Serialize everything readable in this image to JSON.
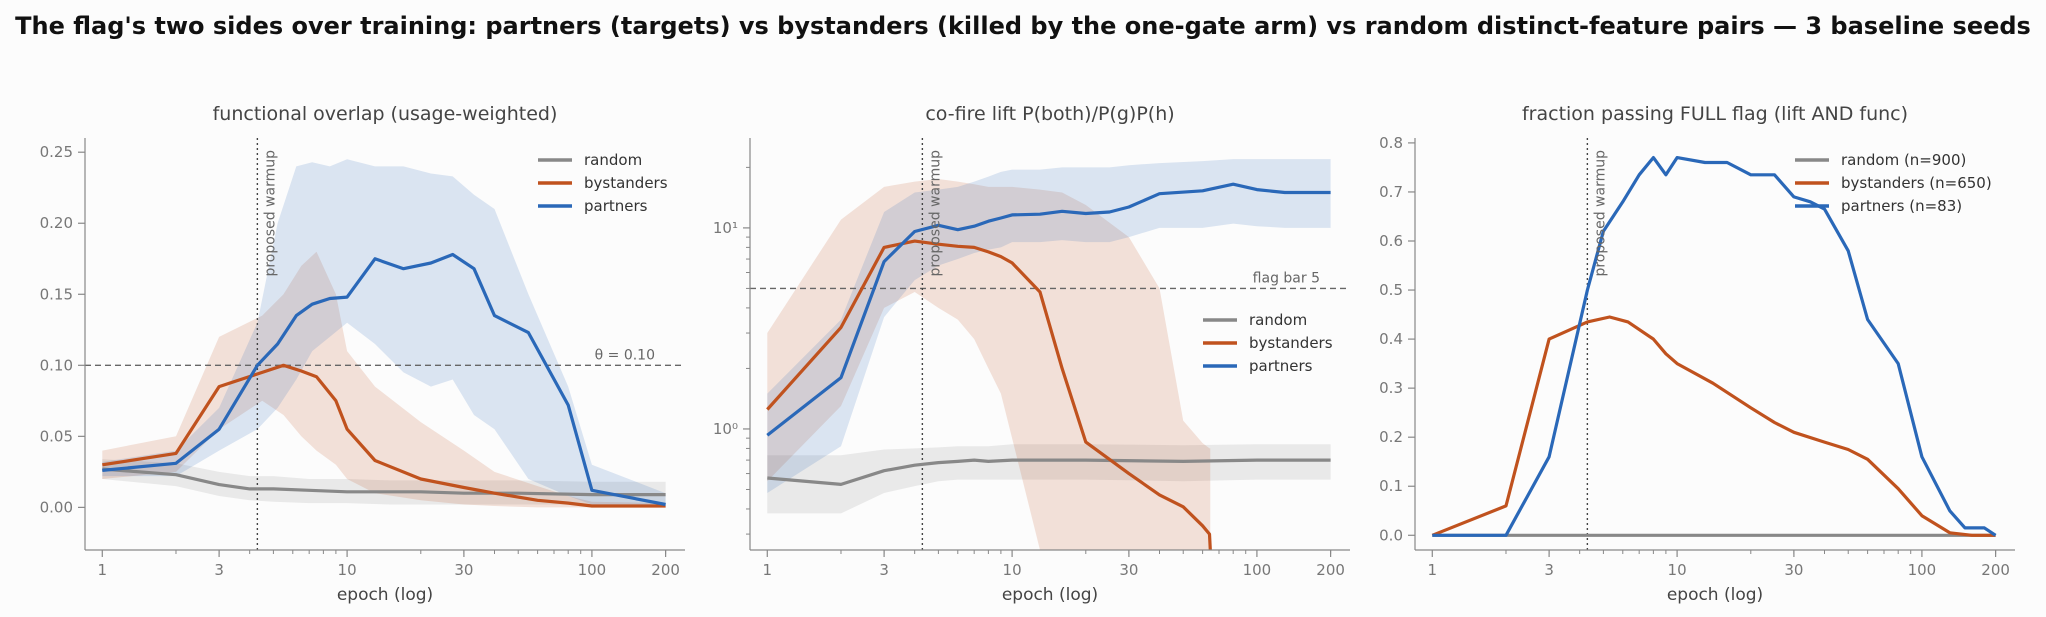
{
  "suptitle": "The flag's two sides over training: partners (targets) vs bystanders (killed by the one-gate arm) vs random distinct-feature pairs — 3 baseline seeds",
  "colors": {
    "random": "#888888",
    "bystanders": "#c0521e",
    "partners": "#2a68b8"
  },
  "chart_data": [
    {
      "type": "line",
      "title": "functional overlap (usage-weighted)",
      "xlabel": "epoch (log)",
      "xscale": "log",
      "xlim": [
        0.85,
        240
      ],
      "xticks": [
        1,
        3,
        10,
        30,
        100,
        200
      ],
      "xtick_labels": [
        "1",
        "3",
        "10",
        "30",
        "100",
        "200"
      ],
      "yscale": "linear",
      "ylim": [
        -0.03,
        0.26
      ],
      "yticks": [
        0.0,
        0.05,
        0.1,
        0.15,
        0.2,
        0.25
      ],
      "ytick_labels": [
        "0.00",
        "0.05",
        "0.10",
        "0.15",
        "0.20",
        "0.25"
      ],
      "vline": {
        "x": 4.3,
        "label": "proposed warmup"
      },
      "hline": {
        "y": 0.1,
        "label": "θ = 0.10"
      },
      "legend_position": "upper-right",
      "series": [
        {
          "name": "random",
          "color_key": "random",
          "x": [
            1,
            2,
            3,
            4,
            5,
            7,
            10,
            15,
            20,
            30,
            50,
            100,
            200
          ],
          "y": [
            0.027,
            0.023,
            0.016,
            0.013,
            0.013,
            0.012,
            0.011,
            0.011,
            0.011,
            0.01,
            0.01,
            0.009,
            0.009
          ],
          "lo": [
            0.02,
            0.015,
            0.008,
            0.005,
            0.004,
            0.003,
            0.003,
            0.002,
            0.002,
            0.002,
            0.002,
            0.002,
            0.002
          ],
          "hi": [
            0.034,
            0.031,
            0.025,
            0.022,
            0.022,
            0.02,
            0.02,
            0.019,
            0.019,
            0.019,
            0.019,
            0.018,
            0.018
          ]
        },
        {
          "name": "bystanders",
          "color_key": "bystanders",
          "x": [
            1,
            2,
            3,
            4.5,
            5.5,
            6.5,
            7.5,
            9,
            10,
            13,
            20,
            30,
            40,
            60,
            80,
            100,
            200
          ],
          "y": [
            0.03,
            0.038,
            0.085,
            0.095,
            0.1,
            0.096,
            0.092,
            0.075,
            0.055,
            0.033,
            0.02,
            0.014,
            0.01,
            0.005,
            0.003,
            0.001,
            0.001
          ],
          "lo": [
            0.02,
            0.025,
            0.055,
            0.075,
            0.065,
            0.05,
            0.04,
            0.03,
            0.02,
            0.01,
            0.005,
            0.002,
            0.001,
            0.0,
            0.0,
            0.0,
            0.0
          ],
          "hi": [
            0.04,
            0.05,
            0.12,
            0.135,
            0.15,
            0.17,
            0.18,
            0.15,
            0.11,
            0.085,
            0.06,
            0.04,
            0.025,
            0.015,
            0.008,
            0.004,
            0.003
          ]
        },
        {
          "name": "partners",
          "color_key": "partners",
          "x": [
            1,
            2,
            3,
            4.3,
            5.2,
            6.2,
            7.2,
            8.5,
            10,
            13,
            17,
            22,
            27,
            33,
            40,
            55,
            80,
            100,
            200
          ],
          "y": [
            0.026,
            0.031,
            0.055,
            0.1,
            0.115,
            0.135,
            0.143,
            0.147,
            0.148,
            0.175,
            0.168,
            0.172,
            0.178,
            0.168,
            0.135,
            0.123,
            0.072,
            0.012,
            0.002
          ],
          "lo": [
            0.022,
            0.022,
            0.04,
            0.055,
            0.07,
            0.09,
            0.11,
            0.12,
            0.13,
            0.115,
            0.095,
            0.085,
            0.09,
            0.065,
            0.055,
            0.02,
            0.008,
            0.002,
            0.0
          ],
          "hi": [
            0.032,
            0.04,
            0.07,
            0.13,
            0.2,
            0.24,
            0.243,
            0.24,
            0.245,
            0.24,
            0.24,
            0.235,
            0.233,
            0.22,
            0.21,
            0.15,
            0.085,
            0.03,
            0.01
          ]
        }
      ]
    },
    {
      "type": "line",
      "title": "co-fire lift P(both)/P(g)P(h)",
      "xlabel": "epoch (log)",
      "xscale": "log",
      "xlim": [
        0.85,
        240
      ],
      "xticks": [
        1,
        3,
        10,
        30,
        100,
        200
      ],
      "xtick_labels": [
        "1",
        "3",
        "10",
        "30",
        "100",
        "200"
      ],
      "yscale": "log",
      "ylim": [
        0.25,
        28
      ],
      "yticks": [
        1,
        10
      ],
      "ytick_labels": [
        "10⁰",
        "10¹"
      ],
      "vline": {
        "x": 4.3,
        "label": "proposed warmup"
      },
      "hline": {
        "y": 5,
        "label": "flag bar 5"
      },
      "legend_position": "center-right",
      "series": [
        {
          "name": "random",
          "color_key": "random",
          "x": [
            1,
            2,
            3,
            4,
            5,
            6,
            7,
            8,
            10,
            20,
            50,
            100,
            200
          ],
          "y": [
            0.57,
            0.53,
            0.62,
            0.66,
            0.68,
            0.69,
            0.7,
            0.69,
            0.7,
            0.7,
            0.69,
            0.7,
            0.7
          ],
          "lo": [
            0.38,
            0.38,
            0.48,
            0.52,
            0.55,
            0.56,
            0.56,
            0.56,
            0.56,
            0.56,
            0.55,
            0.56,
            0.56
          ],
          "hi": [
            0.74,
            0.74,
            0.79,
            0.8,
            0.81,
            0.82,
            0.82,
            0.82,
            0.84,
            0.84,
            0.83,
            0.84,
            0.84
          ]
        },
        {
          "name": "bystanders",
          "color_key": "bystanders",
          "x": [
            1,
            2,
            3,
            4,
            5,
            6,
            7,
            8,
            9,
            10,
            13,
            16,
            20,
            30,
            40,
            50,
            60,
            64,
            64.5
          ],
          "y": [
            1.25,
            3.2,
            8.0,
            8.6,
            8.3,
            8.1,
            8.0,
            7.6,
            7.2,
            6.7,
            4.8,
            2.0,
            0.86,
            0.6,
            0.47,
            0.41,
            0.33,
            0.3,
            0.25
          ],
          "lo": [
            0.55,
            1.3,
            4.0,
            4.8,
            4.0,
            3.5,
            2.8,
            2.0,
            1.5,
            0.9,
            0.25,
            0.25,
            0.25,
            0.25,
            0.25,
            0.25,
            0.25,
            0.25,
            0.25
          ],
          "hi": [
            3.0,
            11.0,
            16.0,
            17.0,
            17.5,
            17.0,
            16.5,
            16.0,
            16.0,
            16.0,
            15.5,
            15.0,
            13.0,
            9.0,
            5.0,
            1.1,
            0.85,
            0.8,
            0.8
          ]
        },
        {
          "name": "partners",
          "color_key": "partners",
          "x": [
            1,
            2,
            3,
            4,
            5,
            6,
            7,
            8,
            9,
            10,
            13,
            16,
            20,
            25,
            30,
            40,
            60,
            80,
            100,
            130,
            160,
            200
          ],
          "y": [
            0.93,
            1.8,
            6.8,
            9.6,
            10.3,
            9.8,
            10.2,
            10.8,
            11.2,
            11.6,
            11.7,
            12.1,
            11.8,
            12.0,
            12.7,
            14.8,
            15.3,
            16.5,
            15.5,
            15.0,
            15.0,
            15.0
          ],
          "lo": [
            0.48,
            0.82,
            3.6,
            5.5,
            6.5,
            7.0,
            7.5,
            7.8,
            8.0,
            8.5,
            8.5,
            8.7,
            8.5,
            8.5,
            9.0,
            10.0,
            10.0,
            10.5,
            10.2,
            10.0,
            10.0,
            10.0
          ],
          "hi": [
            1.5,
            3.5,
            12.0,
            15.0,
            15.5,
            16.0,
            17.0,
            18.0,
            19.0,
            19.5,
            19.5,
            20.0,
            20.0,
            20.0,
            20.5,
            21.0,
            21.5,
            22.0,
            22.0,
            22.0,
            22.0,
            22.0
          ]
        }
      ]
    },
    {
      "type": "line",
      "title": "fraction passing FULL flag (lift AND func)",
      "xlabel": "epoch (log)",
      "xscale": "log",
      "xlim": [
        0.85,
        240
      ],
      "xticks": [
        1,
        3,
        10,
        30,
        100,
        200
      ],
      "xtick_labels": [
        "1",
        "3",
        "10",
        "30",
        "100",
        "200"
      ],
      "yscale": "linear",
      "ylim": [
        -0.03,
        0.81
      ],
      "yticks": [
        0.0,
        0.1,
        0.2,
        0.3,
        0.4,
        0.5,
        0.6,
        0.7,
        0.8
      ],
      "ytick_labels": [
        "0.0",
        "0.1",
        "0.2",
        "0.3",
        "0.4",
        "0.5",
        "0.6",
        "0.7",
        "0.8"
      ],
      "vline": {
        "x": 4.3,
        "label": "proposed warmup"
      },
      "legend_position": "upper-right",
      "series": [
        {
          "name": "random (n=900)",
          "color_key": "random",
          "x": [
            1,
            200
          ],
          "y": [
            0.0,
            0.0
          ]
        },
        {
          "name": "bystanders (n=650)",
          "color_key": "bystanders",
          "x": [
            1,
            2,
            3,
            4.3,
            5.3,
            6.3,
            8,
            9,
            10,
            14,
            20,
            25,
            30,
            40,
            50,
            60,
            80,
            100,
            130,
            160,
            200
          ],
          "y": [
            0.0,
            0.06,
            0.4,
            0.435,
            0.445,
            0.435,
            0.4,
            0.37,
            0.35,
            0.31,
            0.26,
            0.23,
            0.21,
            0.19,
            0.175,
            0.155,
            0.095,
            0.04,
            0.005,
            0.0,
            0.0
          ]
        },
        {
          "name": "partners (n=83)",
          "color_key": "partners",
          "x": [
            1,
            2,
            3,
            4.3,
            5,
            6,
            7,
            8,
            9,
            10,
            13,
            16,
            20,
            25,
            30,
            35,
            40,
            50,
            60,
            80,
            100,
            130,
            150,
            180,
            200
          ],
          "y": [
            0.0,
            0.0,
            0.16,
            0.5,
            0.62,
            0.68,
            0.735,
            0.77,
            0.735,
            0.77,
            0.76,
            0.76,
            0.735,
            0.735,
            0.69,
            0.68,
            0.665,
            0.58,
            0.44,
            0.35,
            0.16,
            0.05,
            0.015,
            0.015,
            0.0
          ]
        }
      ]
    }
  ]
}
